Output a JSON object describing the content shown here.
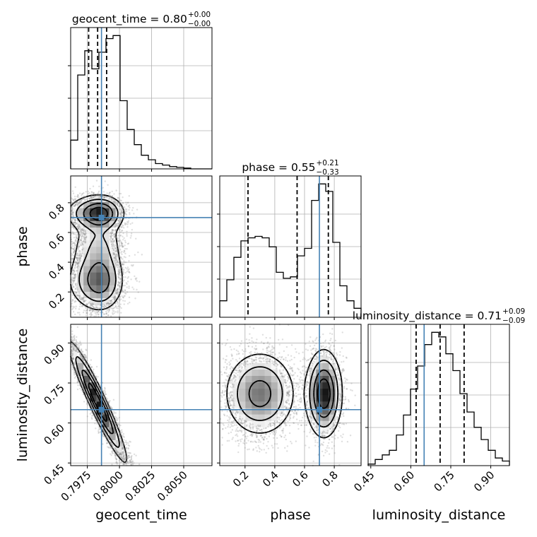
{
  "chart_data": {
    "type": "corner",
    "parameters": [
      "geocent_time",
      "phase",
      "luminosity_distance"
    ],
    "axis_labels": [
      "geocent_time",
      "phase",
      "luminosity_distance"
    ],
    "ranges": {
      "geocent_time": [
        0.7962,
        0.8072
      ],
      "phase": [
        0.03,
        0.98
      ],
      "luminosity_distance": [
        0.44,
        0.97
      ]
    },
    "ticks": {
      "geocent_time": [
        0.7975,
        0.8,
        0.8025,
        0.805
      ],
      "phase": [
        0.2,
        0.4,
        0.6,
        0.8
      ],
      "luminosity_distance": [
        0.45,
        0.6,
        0.75,
        0.9
      ]
    },
    "tick_labels": {
      "geocent_time": [
        "0.7975",
        "0.8000",
        "0.8025",
        "0.8050"
      ],
      "phase": [
        "0.2",
        "0.4",
        "0.6",
        "0.8"
      ],
      "luminosity_distance": [
        "0.45",
        "0.60",
        "0.75",
        "0.90"
      ]
    },
    "truths": {
      "geocent_time": 0.7986,
      "phase": 0.7,
      "luminosity_distance": 0.65
    },
    "quantiles": {
      "geocent_time": [
        0.7976,
        0.7983,
        0.799
      ],
      "phase": [
        0.22,
        0.55,
        0.76
      ],
      "luminosity_distance": [
        0.62,
        0.71,
        0.8
      ]
    },
    "titles": {
      "geocent_time": {
        "lead": "geocent_time = 0.80",
        "plus": "+0.00",
        "minus": "−0.00"
      },
      "phase": {
        "lead": "phase = 0.55",
        "plus": "+0.21",
        "minus": "−0.33"
      },
      "luminosity_distance": {
        "lead": "luminosity_distance = 0.71",
        "plus": "+0.09",
        "minus": "−0.09"
      }
    },
    "histograms": {
      "geocent_time": {
        "bin_edges": [
          0.7962,
          0.79675,
          0.7973,
          0.79785,
          0.7984,
          0.79895,
          0.7995,
          0.80005,
          0.8006,
          0.80115,
          0.8017,
          0.80225,
          0.8028,
          0.80335,
          0.8039,
          0.80445,
          0.805,
          0.80555,
          0.8061,
          0.80665,
          0.8072
        ],
        "counts": [
          0.19,
          0.62,
          0.78,
          0.66,
          0.77,
          0.86,
          0.88,
          0.45,
          0.26,
          0.16,
          0.09,
          0.06,
          0.035,
          0.025,
          0.015,
          0.01,
          0.005,
          0.0,
          0.0,
          0.0
        ]
      },
      "phase": {
        "bin_edges": [
          0.03,
          0.0775,
          0.125,
          0.1725,
          0.22,
          0.2675,
          0.315,
          0.3625,
          0.41,
          0.4575,
          0.505,
          0.5525,
          0.6,
          0.6475,
          0.695,
          0.7425,
          0.79,
          0.8375,
          0.885,
          0.9325,
          0.98
        ],
        "counts": [
          0.11,
          0.25,
          0.4,
          0.51,
          0.53,
          0.54,
          0.53,
          0.47,
          0.3,
          0.26,
          0.27,
          0.41,
          0.46,
          0.78,
          0.89,
          0.84,
          0.5,
          0.21,
          0.11,
          0.06
        ]
      },
      "luminosity_distance": {
        "bin_edges": [
          0.44,
          0.4665,
          0.493,
          0.5195,
          0.546,
          0.5725,
          0.599,
          0.6255,
          0.652,
          0.6785,
          0.705,
          0.7315,
          0.758,
          0.7845,
          0.811,
          0.8375,
          0.864,
          0.8905,
          0.917,
          0.9435,
          0.97
        ],
        "counts": [
          0.01,
          0.04,
          0.07,
          0.1,
          0.2,
          0.33,
          0.5,
          0.65,
          0.79,
          0.87,
          0.84,
          0.73,
          0.62,
          0.47,
          0.35,
          0.25,
          0.17,
          0.1,
          0.05,
          0.03
        ]
      }
    }
  }
}
